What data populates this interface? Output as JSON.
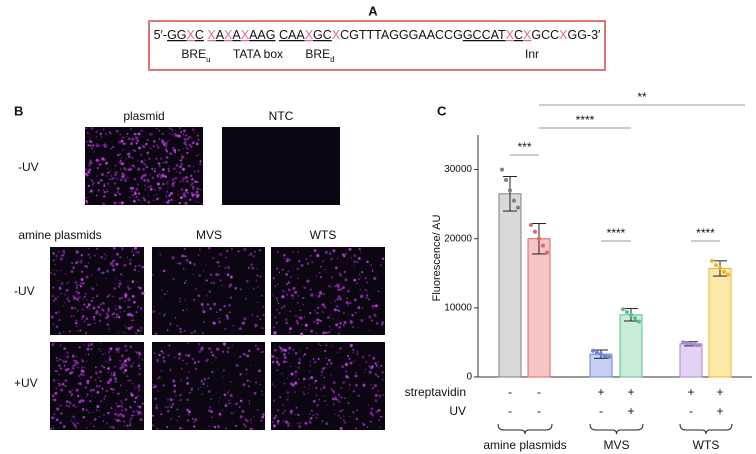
{
  "panel_a": {
    "label": "A",
    "sequence": [
      "5′-",
      "GG",
      "X",
      "C",
      "X",
      "A",
      "X",
      "A",
      "X",
      "AAG",
      "CAA",
      "X",
      "GC",
      "X",
      "CGTTTAGGGAACCG",
      "GCCAT",
      "X",
      "C",
      "X",
      "GCC",
      "X",
      "GG-3′"
    ],
    "elements": [
      {
        "text": "BRE",
        "sub": "u"
      },
      {
        "text": "TATA box"
      },
      {
        "text": "BRE",
        "sub": "d"
      },
      {
        "text": "Inr"
      }
    ]
  },
  "panel_b": {
    "label": "B",
    "top_columns": [
      "plasmid",
      "NTC"
    ],
    "top_row": "-UV",
    "bottom_columns": [
      "amine plasmids",
      "MVS",
      "WTS"
    ],
    "bottom_rows": [
      "-UV",
      "+UV"
    ]
  },
  "chart_data": {
    "type": "bar",
    "label": "C",
    "y_label": "Fluorescence/ AU",
    "values": [
      26500,
      20000,
      3300,
      9000,
      4800,
      15700
    ],
    "errors": [
      2500,
      2200,
      600,
      900,
      300,
      1100
    ],
    "points": [
      [
        30000,
        28500,
        27000,
        25500,
        24500
      ],
      [
        22000,
        21000,
        20000,
        19000,
        18000
      ],
      [
        3800,
        3500,
        3300,
        3000,
        2900
      ],
      [
        9800,
        9400,
        9000,
        8500,
        8000
      ],
      [
        5000,
        4900,
        4800,
        4700,
        4600
      ],
      [
        16800,
        16200,
        15800,
        15200,
        14800
      ]
    ],
    "colors": [
      "#d9d9d9",
      "#f5c4c4",
      "#c6cff2",
      "#c9ecd9",
      "#e2d3f5",
      "#fdeaa9"
    ],
    "edge_colors": [
      "#7f7f7f",
      "#e06666",
      "#6b80d8",
      "#5cbf8a",
      "#a586d8",
      "#e6b52e"
    ],
    "ylim": [
      0,
      35000
    ],
    "yticks": [
      0,
      10000,
      20000,
      30000
    ],
    "significance": [
      "***",
      "****",
      "****",
      "****",
      "**"
    ],
    "rows": [
      {
        "name": "streptavidin",
        "cells": [
          "-",
          "-",
          "+",
          "+",
          "+",
          "+"
        ]
      },
      {
        "name": "UV",
        "cells": [
          "-",
          "-",
          "-",
          "+",
          "-",
          "+"
        ]
      }
    ],
    "groups": [
      "amine plasmids",
      "MVS",
      "WTS"
    ]
  }
}
